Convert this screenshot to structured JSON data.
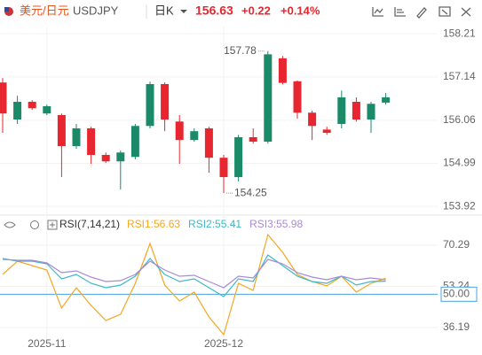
{
  "header": {
    "pair": "美元/日元",
    "symbol": "USDJPY",
    "period": "日K",
    "price": "156.63",
    "change": "+0.22",
    "change_pct": "+0.14%"
  },
  "chart_data": [
    {
      "type": "candlestick",
      "categories": [
        null,
        null,
        null,
        "2025-11",
        null,
        null,
        null,
        null,
        null,
        null,
        null,
        null,
        null,
        null,
        null,
        "2025-12",
        null,
        null,
        null,
        null,
        null,
        null,
        null,
        null,
        null,
        null,
        null
      ],
      "open": [
        157.0,
        156.08,
        156.52,
        156.23,
        156.19,
        155.42,
        155.86,
        155.2,
        155.04,
        155.15,
        155.92,
        156.96,
        156.03,
        155.57,
        155.86,
        155.13,
        154.65,
        155.64,
        155.53,
        157.6,
        157.03,
        156.25,
        155.83,
        155.97,
        156.52,
        156.08,
        156.5
      ],
      "high": [
        157.11,
        156.67,
        156.56,
        156.45,
        156.23,
        155.97,
        155.9,
        155.26,
        155.31,
        155.97,
        157.02,
        157.0,
        156.19,
        155.86,
        155.9,
        155.2,
        155.7,
        155.86,
        157.78,
        157.66,
        157.05,
        156.3,
        155.9,
        156.8,
        156.63,
        156.52,
        156.74
      ],
      "low": [
        155.75,
        155.97,
        156.32,
        156.19,
        154.65,
        155.35,
        154.98,
        155.0,
        154.34,
        155.09,
        155.86,
        155.79,
        154.98,
        155.53,
        154.76,
        154.25,
        154.54,
        155.48,
        155.48,
        156.95,
        156.1,
        155.57,
        155.7,
        155.86,
        156.03,
        155.75,
        156.45
      ],
      "close": [
        156.23,
        156.52,
        156.36,
        156.41,
        155.42,
        155.86,
        155.2,
        155.04,
        155.26,
        155.92,
        156.96,
        156.08,
        155.57,
        155.79,
        155.13,
        154.65,
        155.64,
        155.53,
        157.7,
        156.99,
        156.25,
        155.92,
        155.75,
        156.63,
        156.08,
        156.47,
        156.63
      ],
      "up_color": "#1b8a68",
      "down_color": "#e8262f",
      "ylim": [
        153.77,
        158.39
      ],
      "yticks": [
        158.21,
        157.14,
        156.06,
        154.99,
        153.92
      ],
      "grid": true
    },
    {
      "type": "line",
      "title": "RSI(7,14,21)",
      "series": [
        {
          "name": "RSI1:56.63",
          "color": "#f5a623",
          "values": [
            58.19,
            63.69,
            61.86,
            60.02,
            44.25,
            52.69,
            45.36,
            39.12,
            41.69,
            54.52,
            71.02,
            53.79,
            47.19,
            50.86,
            40.59,
            33.25,
            54.52,
            51.59,
            74.69,
            67.36,
            58.19,
            55.26,
            53.42,
            57.46,
            50.86,
            54.52,
            56.63
          ]
        },
        {
          "name": "RSI2:55.41",
          "color": "#3cb8c8",
          "values": [
            64.79,
            63.69,
            63.69,
            62.59,
            56.36,
            58.19,
            54.52,
            52.69,
            53.79,
            57.46,
            64.79,
            58.19,
            55.26,
            56.36,
            52.69,
            49.02,
            56.36,
            55.26,
            66.26,
            61.86,
            57.46,
            55.26,
            54.52,
            57.46,
            53.79,
            55.26,
            55.41
          ]
        },
        {
          "name": "RSI3:55.98",
          "color": "#a78bd6",
          "values": [
            64.42,
            64.06,
            64.06,
            62.96,
            58.92,
            59.66,
            57.09,
            55.26,
            55.62,
            58.19,
            63.69,
            60.02,
            57.46,
            57.82,
            55.26,
            52.69,
            57.46,
            56.72,
            64.42,
            62.59,
            58.92,
            57.09,
            55.99,
            57.46,
            55.99,
            56.72,
            55.98
          ]
        }
      ],
      "ylim": [
        30.69,
        75.79
      ],
      "yticks": [
        70.29,
        53.24,
        {
          "value": 50,
          "label": "50.00"
        },
        36.19
      ],
      "reference_line": 50,
      "reference_color": "#4aa3df",
      "grid": true
    }
  ]
}
